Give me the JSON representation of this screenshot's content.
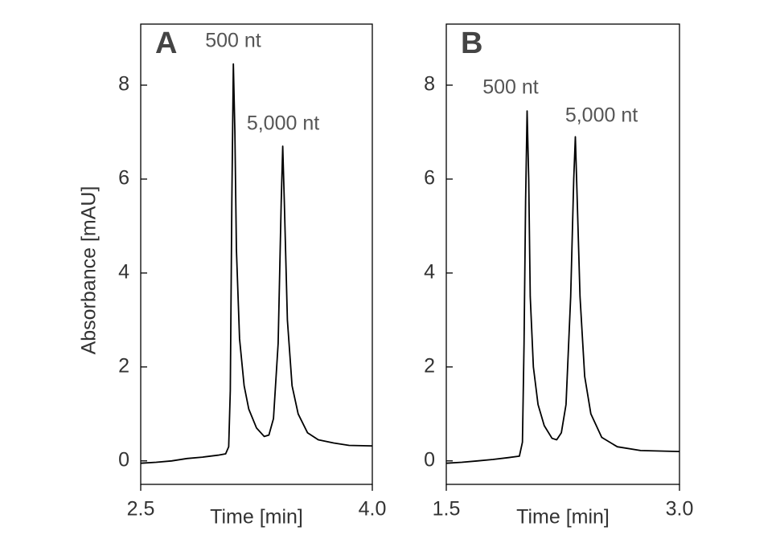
{
  "chart_data": [
    {
      "type": "line",
      "panel_label": "A",
      "ylabel": "Absorbance [mAU]",
      "xlabel": "Time [min]",
      "color": "#000000",
      "x": [
        2.5,
        2.6,
        2.7,
        2.8,
        2.9,
        3.0,
        3.05,
        3.07,
        3.08,
        3.09,
        3.1,
        3.11,
        3.12,
        3.14,
        3.17,
        3.2,
        3.25,
        3.3,
        3.33,
        3.36,
        3.39,
        3.41,
        3.42,
        3.43,
        3.45,
        3.48,
        3.52,
        3.58,
        3.65,
        3.75,
        3.85,
        4.0
      ],
      "values": [
        -0.05,
        -0.03,
        0.0,
        0.05,
        0.08,
        0.12,
        0.15,
        0.3,
        1.5,
        5.5,
        8.45,
        7.0,
        4.5,
        2.6,
        1.6,
        1.1,
        0.7,
        0.52,
        0.55,
        0.9,
        2.5,
        5.5,
        6.7,
        5.5,
        3.0,
        1.6,
        1.0,
        0.6,
        0.45,
        0.38,
        0.33,
        0.32
      ],
      "xlim": [
        2.5,
        4.0
      ],
      "xticks": [
        2.5,
        {
          "value": 4.0,
          "label": "4.0"
        }
      ],
      "ylim": [
        -0.5,
        9.3
      ],
      "yticks": [
        0,
        2,
        4,
        6,
        8
      ],
      "annotations": [
        "500 nt",
        "5,000 nt"
      ]
    },
    {
      "type": "line",
      "panel_label": "B",
      "xlabel": "Time [min]",
      "color": "#000000",
      "x": [
        1.5,
        1.6,
        1.7,
        1.8,
        1.9,
        1.97,
        1.99,
        2.0,
        2.01,
        2.02,
        2.03,
        2.04,
        2.06,
        2.09,
        2.13,
        2.18,
        2.21,
        2.24,
        2.27,
        2.3,
        2.32,
        2.33,
        2.34,
        2.36,
        2.39,
        2.43,
        2.5,
        2.6,
        2.75,
        3.0
      ],
      "values": [
        -0.05,
        -0.03,
        0.0,
        0.03,
        0.07,
        0.1,
        0.4,
        2.5,
        5.5,
        7.45,
        6.0,
        3.5,
        2.0,
        1.2,
        0.75,
        0.48,
        0.45,
        0.6,
        1.2,
        3.5,
        6.0,
        6.9,
        5.8,
        3.5,
        1.8,
        1.0,
        0.5,
        0.3,
        0.22,
        0.2
      ],
      "xlim": [
        1.5,
        3.0
      ],
      "xticks": [
        1.5,
        {
          "value": 3.0,
          "label": "3.0"
        }
      ],
      "ylim": [
        -0.5,
        9.3
      ],
      "yticks": [
        0,
        2,
        4,
        6,
        8
      ],
      "annotations": [
        "500 nt",
        "5,000 nt"
      ]
    }
  ]
}
